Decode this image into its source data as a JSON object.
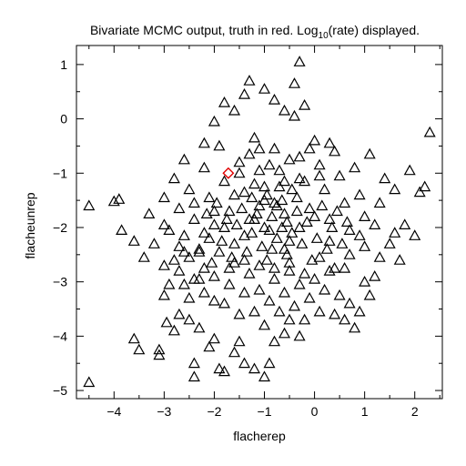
{
  "chart_data": {
    "type": "scatter",
    "title_parts": {
      "before": "Bivariate MCMC output, truth in red. Log",
      "subscript": "10",
      "after": "(rate) displayed."
    },
    "xlabel": "flacherep",
    "ylabel": "flacheunrep",
    "xlim": [
      -4.75,
      2.55
    ],
    "ylim": [
      -5.15,
      1.35
    ],
    "xticks": [
      -4,
      -3,
      -2,
      -1,
      0,
      1,
      2
    ],
    "yticks": [
      -5,
      -4,
      -3,
      -2,
      -1,
      0,
      1
    ],
    "grid": false,
    "marker": "open-triangle",
    "series": [
      {
        "color": "#000000",
        "points": [
          [
            -4.5,
            -1.6
          ],
          [
            -4.5,
            -4.85
          ],
          [
            -4.0,
            -1.52
          ],
          [
            -3.9,
            -1.48
          ],
          [
            -3.85,
            -2.05
          ],
          [
            -3.6,
            -4.05
          ],
          [
            -3.5,
            -4.25
          ],
          [
            -3.6,
            -2.25
          ],
          [
            -3.4,
            -2.55
          ],
          [
            -3.3,
            -1.75
          ],
          [
            -3.2,
            -2.3
          ],
          [
            -3.1,
            -4.25
          ],
          [
            -3.1,
            -4.35
          ],
          [
            -3.0,
            -3.25
          ],
          [
            -3.0,
            -2.7
          ],
          [
            -2.95,
            -3.75
          ],
          [
            -3.0,
            -1.95
          ],
          [
            -2.9,
            -3.05
          ],
          [
            -2.8,
            -3.9
          ],
          [
            -2.7,
            -3.6
          ],
          [
            -2.6,
            -3.05
          ],
          [
            -2.5,
            -3.7
          ],
          [
            -2.4,
            -4.5
          ],
          [
            -2.4,
            -4.75
          ],
          [
            -2.3,
            -3.85
          ],
          [
            -2.2,
            -3.2
          ],
          [
            -2.1,
            -4.2
          ],
          [
            -2.0,
            -4.05
          ],
          [
            -1.9,
            -4.6
          ],
          [
            -1.8,
            -4.65
          ],
          [
            -1.6,
            -4.3
          ],
          [
            -1.5,
            -4.1
          ],
          [
            -1.4,
            -4.5
          ],
          [
            -1.2,
            -4.6
          ],
          [
            -1.0,
            -4.75
          ],
          [
            -0.9,
            -4.5
          ],
          [
            -0.8,
            -4.1
          ],
          [
            -0.6,
            -3.95
          ],
          [
            -0.5,
            -3.7
          ],
          [
            -0.3,
            -4.0
          ],
          [
            -2.8,
            -2.6
          ],
          [
            -2.7,
            -2.35
          ],
          [
            -2.6,
            -2.15
          ],
          [
            -2.5,
            -2.55
          ],
          [
            -2.7,
            -2.8
          ],
          [
            -2.5,
            -3.3
          ],
          [
            -2.4,
            -2.95
          ],
          [
            -2.3,
            -2.4
          ],
          [
            -2.2,
            -2.75
          ],
          [
            -2.1,
            -2.2
          ],
          [
            -2.0,
            -2.9
          ],
          [
            -1.9,
            -2.45
          ],
          [
            -1.8,
            -3.4
          ],
          [
            -1.7,
            -3.05
          ],
          [
            -1.6,
            -2.65
          ],
          [
            -1.5,
            -3.6
          ],
          [
            -1.4,
            -3.2
          ],
          [
            -1.3,
            -2.85
          ],
          [
            -1.2,
            -3.55
          ],
          [
            -1.1,
            -3.15
          ],
          [
            -1.0,
            -3.8
          ],
          [
            -0.9,
            -3.35
          ],
          [
            -0.8,
            -2.95
          ],
          [
            -0.7,
            -3.55
          ],
          [
            -0.6,
            -3.2
          ],
          [
            -0.5,
            -2.8
          ],
          [
            -0.4,
            -3.45
          ],
          [
            -0.3,
            -3.05
          ],
          [
            -0.2,
            -3.7
          ],
          [
            -0.1,
            -3.3
          ],
          [
            0.0,
            -2.95
          ],
          [
            0.1,
            -3.55
          ],
          [
            0.2,
            -3.15
          ],
          [
            0.3,
            -2.8
          ],
          [
            0.4,
            -3.6
          ],
          [
            0.5,
            -3.25
          ],
          [
            0.6,
            -3.7
          ],
          [
            0.7,
            -3.4
          ],
          [
            0.8,
            -3.85
          ],
          [
            0.9,
            -3.55
          ],
          [
            1.0,
            -3.0
          ],
          [
            1.1,
            -3.25
          ],
          [
            1.2,
            -2.9
          ],
          [
            1.3,
            -2.55
          ],
          [
            1.5,
            -2.3
          ],
          [
            1.6,
            -2.1
          ],
          [
            1.7,
            -2.6
          ],
          [
            1.8,
            -1.95
          ],
          [
            2.0,
            -2.15
          ],
          [
            2.1,
            -1.35
          ],
          [
            2.2,
            -1.25
          ],
          [
            2.3,
            -0.25
          ],
          [
            1.9,
            -0.95
          ],
          [
            1.6,
            -1.3
          ],
          [
            1.4,
            -1.1
          ],
          [
            1.3,
            -1.55
          ],
          [
            1.1,
            -0.65
          ],
          [
            1.0,
            -1.8
          ],
          [
            0.9,
            -1.4
          ],
          [
            0.8,
            -0.9
          ],
          [
            0.7,
            -2.05
          ],
          [
            0.6,
            -1.55
          ],
          [
            0.5,
            -1.05
          ],
          [
            0.4,
            -0.6
          ],
          [
            0.3,
            -1.85
          ],
          [
            0.2,
            -1.3
          ],
          [
            0.1,
            -0.85
          ],
          [
            0.0,
            -0.4
          ],
          [
            -0.1,
            -1.65
          ],
          [
            -0.2,
            -1.15
          ],
          [
            -0.3,
            -0.7
          ],
          [
            -0.4,
            0.05
          ],
          [
            -0.5,
            -2.25
          ],
          [
            -0.6,
            -1.75
          ],
          [
            -0.7,
            -1.25
          ],
          [
            -0.8,
            -0.55
          ],
          [
            -0.9,
            -2.05
          ],
          [
            -1.0,
            -1.5
          ],
          [
            -1.1,
            -0.95
          ],
          [
            -1.2,
            -0.35
          ],
          [
            -1.3,
            -1.85
          ],
          [
            -1.4,
            -1.35
          ],
          [
            -1.5,
            -0.8
          ],
          [
            -1.6,
            -2.3
          ],
          [
            -1.7,
            -1.7
          ],
          [
            -1.8,
            -1.15
          ],
          [
            -1.9,
            -0.5
          ],
          [
            -2.0,
            -1.95
          ],
          [
            -2.1,
            -1.45
          ],
          [
            -2.2,
            -0.9
          ],
          [
            -2.3,
            -2.45
          ],
          [
            -2.4,
            -1.85
          ],
          [
            -2.5,
            -1.3
          ],
          [
            -2.6,
            -0.75
          ],
          [
            -2.7,
            -1.65
          ],
          [
            -2.8,
            -1.1
          ],
          [
            -2.9,
            -2.05
          ],
          [
            -3.0,
            -1.45
          ],
          [
            -2.2,
            -0.45
          ],
          [
            -2.0,
            -0.05
          ],
          [
            -1.8,
            0.3
          ],
          [
            -1.6,
            0.15
          ],
          [
            -1.4,
            0.45
          ],
          [
            -1.3,
            0.7
          ],
          [
            -1.0,
            0.55
          ],
          [
            -0.8,
            0.35
          ],
          [
            -0.6,
            0.15
          ],
          [
            -0.4,
            0.65
          ],
          [
            -0.3,
            1.05
          ],
          [
            -0.2,
            0.25
          ],
          [
            -1.2,
            -1.2
          ],
          [
            -1.1,
            -1.6
          ],
          [
            -1.0,
            -2.0
          ],
          [
            -0.95,
            -1.4
          ],
          [
            -0.85,
            -1.8
          ],
          [
            -0.75,
            -2.2
          ],
          [
            -0.65,
            -1.5
          ],
          [
            -0.55,
            -1.9
          ],
          [
            -0.45,
            -1.3
          ],
          [
            -0.35,
            -1.7
          ],
          [
            -1.25,
            -2.1
          ],
          [
            -1.15,
            -1.75
          ],
          [
            -1.05,
            -2.35
          ],
          [
            -0.95,
            -2.6
          ],
          [
            -0.85,
            -2.4
          ],
          [
            -0.75,
            -1.6
          ],
          [
            -0.65,
            -2.0
          ],
          [
            -0.55,
            -2.5
          ],
          [
            -0.45,
            -2.1
          ],
          [
            -0.35,
            -1.45
          ],
          [
            -1.45,
            -1.65
          ],
          [
            -1.35,
            -2.45
          ],
          [
            -1.25,
            -1.45
          ],
          [
            -1.55,
            -1.95
          ],
          [
            -1.65,
            -2.55
          ],
          [
            -1.75,
            -1.85
          ],
          [
            -1.85,
            -2.25
          ],
          [
            -1.95,
            -1.55
          ],
          [
            -2.05,
            -2.65
          ],
          [
            -2.15,
            -1.75
          ],
          [
            -0.25,
            -2.3
          ],
          [
            -0.15,
            -1.9
          ],
          [
            -0.05,
            -2.6
          ],
          [
            0.05,
            -2.2
          ],
          [
            0.15,
            -1.6
          ],
          [
            0.25,
            -2.4
          ],
          [
            0.35,
            -2.0
          ],
          [
            0.45,
            -1.7
          ],
          [
            0.55,
            -2.3
          ],
          [
            0.65,
            -1.9
          ],
          [
            -1.5,
            -1.0
          ],
          [
            -1.3,
            -0.65
          ],
          [
            -1.1,
            -0.55
          ],
          [
            -0.9,
            -0.85
          ],
          [
            -0.7,
            -0.95
          ],
          [
            -0.5,
            -0.75
          ],
          [
            -0.3,
            -1.1
          ],
          [
            -0.1,
            -0.55
          ],
          [
            0.1,
            -1.05
          ],
          [
            0.3,
            -0.45
          ],
          [
            -2.4,
            -1.55
          ],
          [
            -2.2,
            -2.1
          ],
          [
            -2.0,
            -1.7
          ],
          [
            -1.8,
            -2.0
          ],
          [
            -1.6,
            -1.4
          ],
          [
            -1.4,
            -2.15
          ],
          [
            -1.2,
            -1.85
          ],
          [
            -1.0,
            -1.25
          ],
          [
            -0.8,
            -1.55
          ],
          [
            -0.6,
            -2.4
          ],
          [
            -2.6,
            -2.45
          ],
          [
            -2.3,
            -2.95
          ],
          [
            -2.0,
            -3.35
          ],
          [
            -1.7,
            -2.75
          ],
          [
            -1.4,
            -2.6
          ],
          [
            -1.1,
            -2.7
          ],
          [
            -0.8,
            -2.75
          ],
          [
            -0.5,
            -2.65
          ],
          [
            -0.2,
            -2.85
          ],
          [
            0.1,
            -2.55
          ],
          [
            0.4,
            -2.75
          ],
          [
            0.7,
            -2.5
          ],
          [
            1.0,
            -2.35
          ],
          [
            1.2,
            -1.95
          ],
          [
            0.9,
            -2.15
          ],
          [
            0.6,
            -2.75
          ],
          [
            0.3,
            -2.25
          ],
          [
            0.0,
            -1.8
          ],
          [
            -0.3,
            -2.0
          ],
          [
            -0.6,
            -1.15
          ]
        ]
      }
    ],
    "truth": {
      "color": "#e00000",
      "point": [
        -1.72,
        -1.0
      ]
    }
  }
}
